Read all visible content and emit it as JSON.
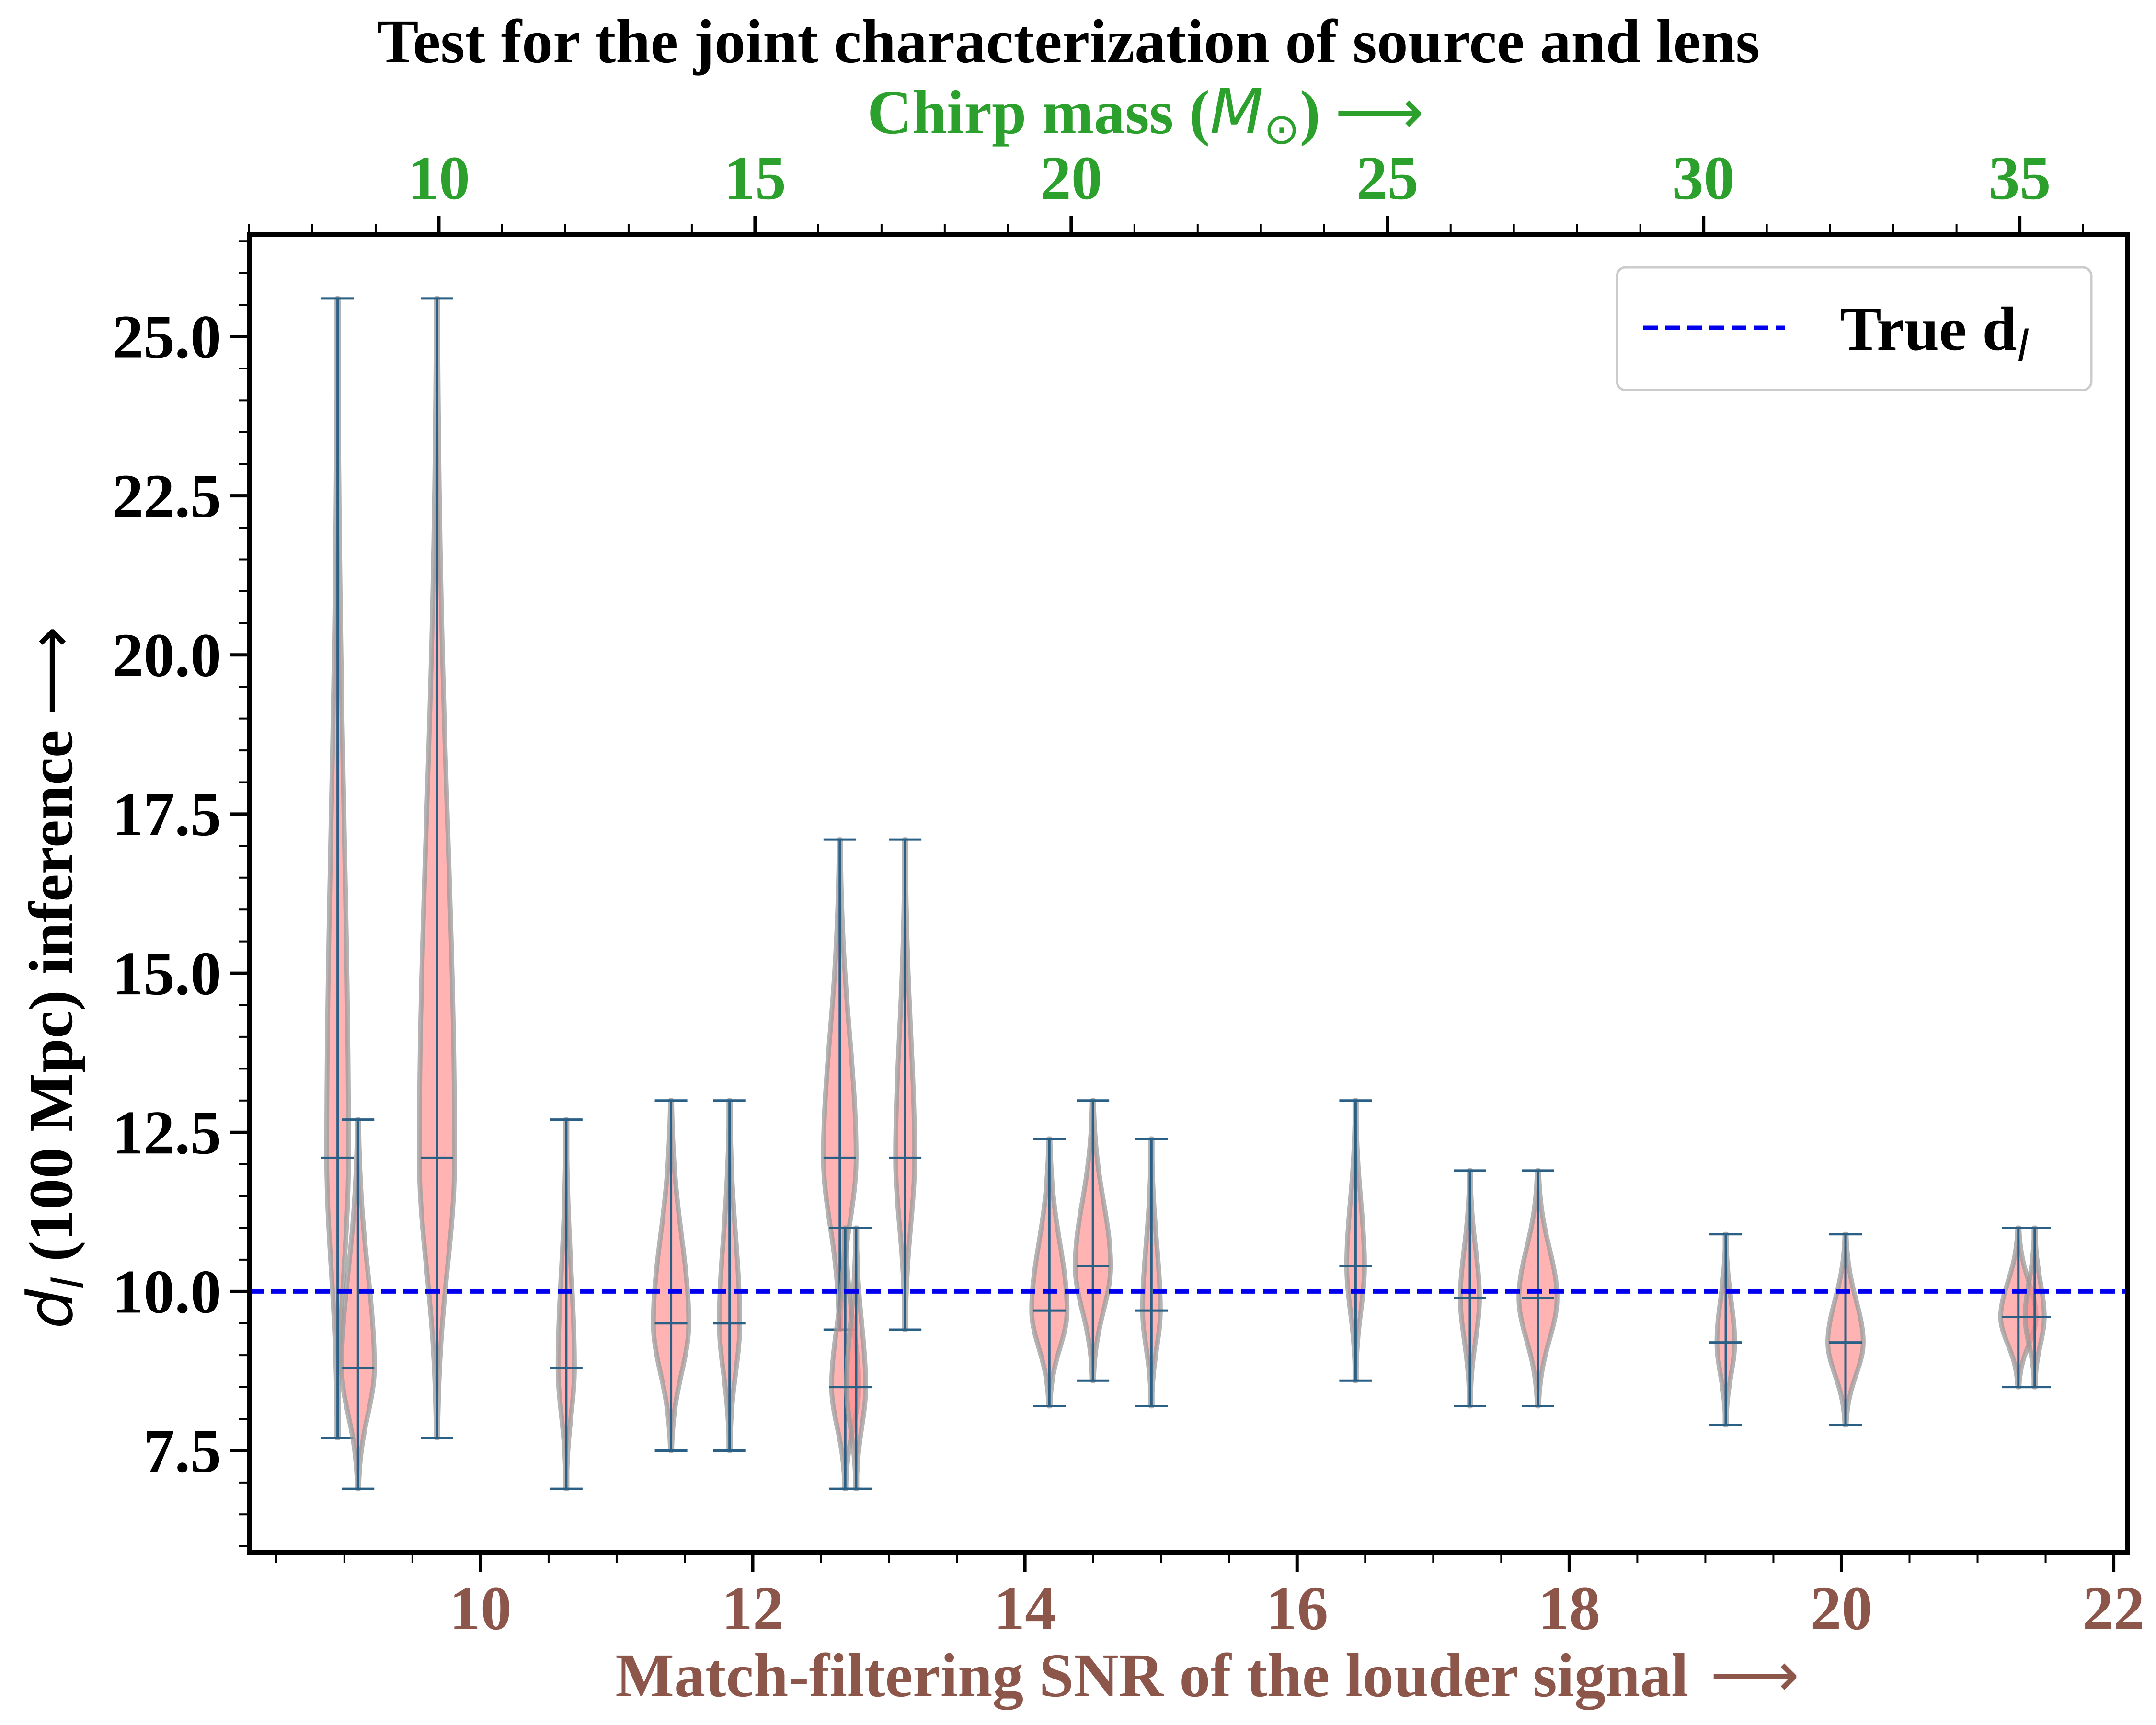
{
  "chart_data": {
    "type": "violin",
    "title": "Test for the joint characterization of source and lens",
    "xlabel": "Match-filtering SNR of the louder signal",
    "xlabel_arrow": "⟶",
    "ylabel_symbol": "d",
    "ylabel_subscript": "l",
    "ylabel_text": " (100 Mpc) inference",
    "ylabel_arrow": "⟶",
    "top_xlabel": "Chirp mass (",
    "top_xlabel_symbol": "M",
    "top_xlabel_subscript": "⊙",
    "top_xlabel_close": ")",
    "top_xlabel_arrow": "⟶",
    "xlim": [
      8.3,
      22.1
    ],
    "ylim": [
      5.9,
      26.6
    ],
    "xticks": [
      "10",
      "12",
      "14",
      "16",
      "18",
      "20",
      "22"
    ],
    "yticks": [
      "7.5",
      "10.0",
      "12.5",
      "15.0",
      "17.5",
      "20.0",
      "22.5",
      "25.0"
    ],
    "top_xticks": [
      "10",
      "15",
      "20",
      "25",
      "30",
      "35"
    ],
    "top_xlim": [
      7.0,
      36.7
    ],
    "reference_line": {
      "label": "True d",
      "label_subscript": "l",
      "y": 10.0,
      "color": "#0000ee"
    },
    "legend_position": "top-right",
    "violin_color": "#ff8a8a",
    "violin_edge_color": "#999999",
    "whisker_color": "#2a5f86",
    "xlabel_color": "#8c564b",
    "top_axis_color": "#2ca02c",
    "violins": [
      {
        "x": 8.95,
        "min": 7.7,
        "median": 12.1,
        "max": 25.6,
        "mode": 12.1,
        "width": 0.16
      },
      {
        "x": 9.1,
        "min": 6.9,
        "median": 8.8,
        "max": 12.7,
        "mode": 8.8,
        "width": 0.24
      },
      {
        "x": 9.68,
        "min": 7.7,
        "median": 12.1,
        "max": 25.6,
        "mode": 12.1,
        "width": 0.26
      },
      {
        "x": 10.63,
        "min": 6.9,
        "median": 8.8,
        "max": 12.7,
        "mode": 8.8,
        "width": 0.12
      },
      {
        "x": 11.4,
        "min": 7.5,
        "median": 9.5,
        "max": 13.0,
        "mode": 9.5,
        "width": 0.26
      },
      {
        "x": 11.83,
        "min": 7.5,
        "median": 9.5,
        "max": 13.0,
        "mode": 9.5,
        "width": 0.15
      },
      {
        "x": 12.64,
        "min": 9.4,
        "median": 12.1,
        "max": 17.1,
        "mode": 12.1,
        "width": 0.24
      },
      {
        "x": 12.68,
        "min": 6.9,
        "median": 8.5,
        "max": 11.0,
        "mode": 8.5,
        "width": 0.2
      },
      {
        "x": 12.76,
        "min": 6.9,
        "median": 8.5,
        "max": 11.0,
        "mode": 8.5,
        "width": 0.14
      },
      {
        "x": 13.12,
        "min": 9.4,
        "median": 12.1,
        "max": 17.1,
        "mode": 12.1,
        "width": 0.14
      },
      {
        "x": 14.18,
        "min": 8.2,
        "median": 9.7,
        "max": 12.4,
        "mode": 9.7,
        "width": 0.26
      },
      {
        "x": 14.5,
        "min": 8.6,
        "median": 10.4,
        "max": 13.0,
        "mode": 10.4,
        "width": 0.26
      },
      {
        "x": 14.93,
        "min": 8.2,
        "median": 9.7,
        "max": 12.4,
        "mode": 9.7,
        "width": 0.13
      },
      {
        "x": 16.43,
        "min": 8.6,
        "median": 10.4,
        "max": 13.0,
        "mode": 10.4,
        "width": 0.13
      },
      {
        "x": 17.27,
        "min": 8.2,
        "median": 9.9,
        "max": 11.9,
        "mode": 9.9,
        "width": 0.14
      },
      {
        "x": 17.77,
        "min": 8.2,
        "median": 9.9,
        "max": 11.9,
        "mode": 9.9,
        "width": 0.28
      },
      {
        "x": 19.15,
        "min": 7.9,
        "median": 9.2,
        "max": 10.9,
        "mode": 9.2,
        "width": 0.13
      },
      {
        "x": 20.03,
        "min": 7.9,
        "median": 9.2,
        "max": 10.9,
        "mode": 9.2,
        "width": 0.26
      },
      {
        "x": 21.3,
        "min": 8.5,
        "median": 9.6,
        "max": 11.0,
        "mode": 9.6,
        "width": 0.26
      },
      {
        "x": 21.42,
        "min": 8.5,
        "median": 9.6,
        "max": 11.0,
        "mode": 9.6,
        "width": 0.14
      }
    ]
  }
}
